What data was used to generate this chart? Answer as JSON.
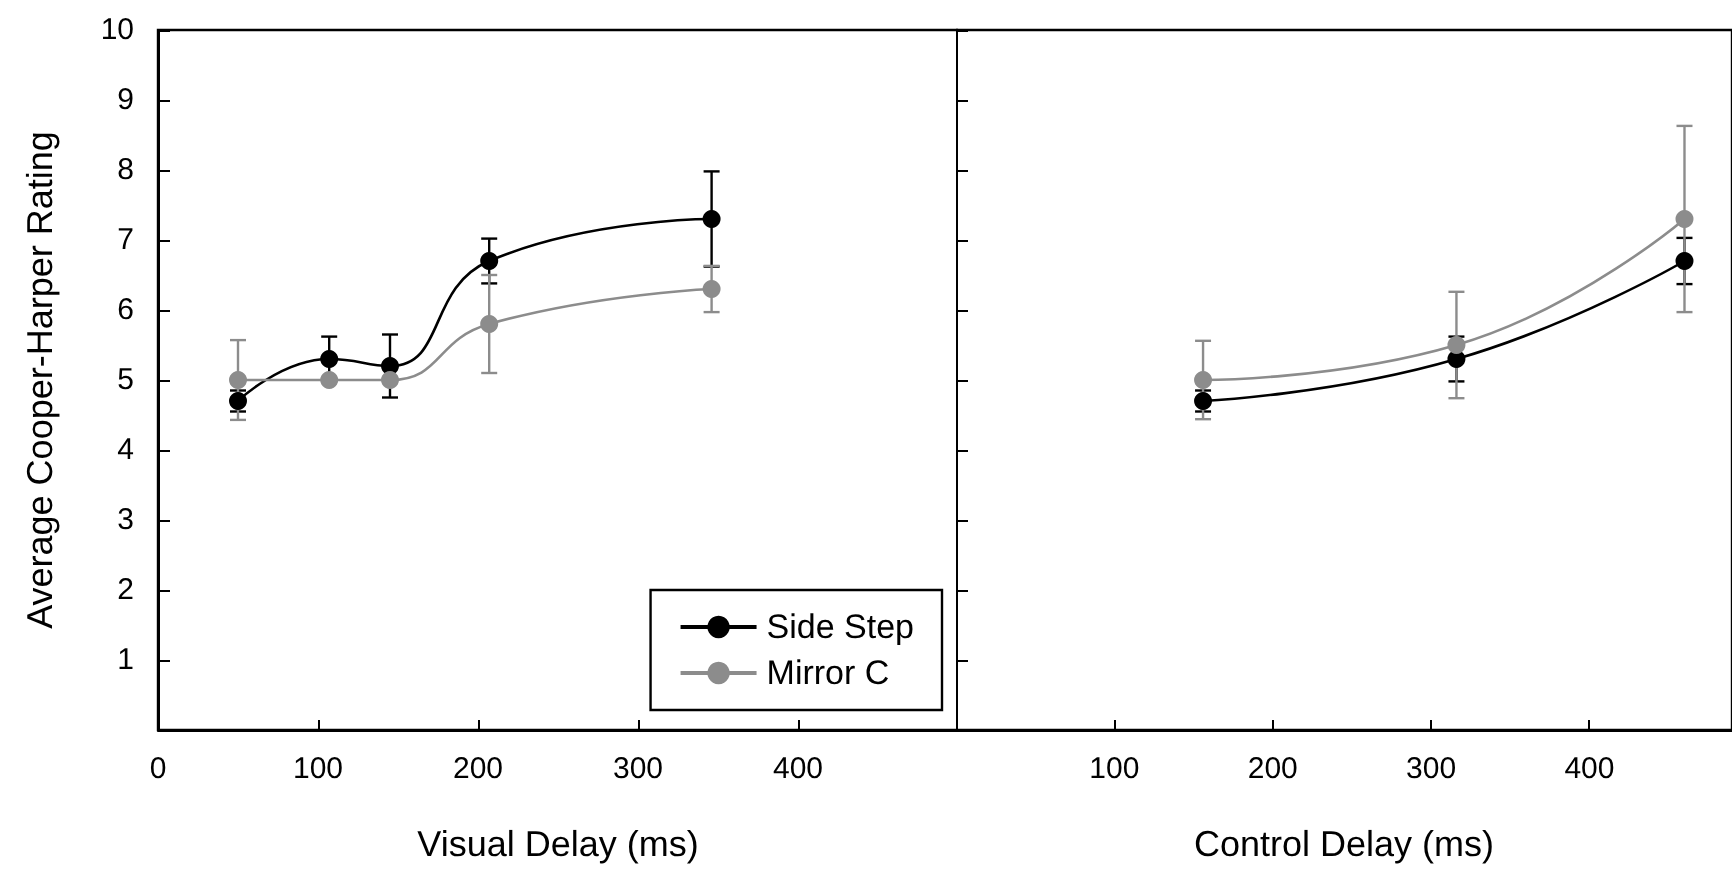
{
  "chart_data": [
    {
      "type": "line",
      "xlabel": "Visual Delay (ms)",
      "ylabel": "Average Cooper-Harper Rating",
      "xlim": [
        0,
        500
      ],
      "xticks": [
        0,
        100,
        200,
        300,
        400
      ],
      "ylim": [
        0,
        10
      ],
      "yticks": [
        1,
        2,
        3,
        4,
        5,
        6,
        7,
        8,
        9,
        10
      ],
      "marker": "circle",
      "line_style": "solid",
      "legend": "bottom right",
      "series": [
        {
          "name": "Side Step",
          "color": "#000000",
          "x": [
            50,
            107,
            145,
            207,
            346
          ],
          "values": [
            4.7,
            5.3,
            5.2,
            6.7,
            7.3
          ],
          "errors": [
            0.15,
            0.32,
            0.45,
            0.32,
            0.68
          ]
        },
        {
          "name": "Mirror C",
          "color": "#8c8c8c",
          "x": [
            50,
            107,
            145,
            207,
            346
          ],
          "values": [
            5.0,
            5.0,
            5.0,
            5.8,
            6.3
          ],
          "errors": [
            0.57,
            null,
            null,
            0.7,
            0.33
          ]
        }
      ]
    },
    {
      "type": "line",
      "xlabel": "Control Delay (ms)",
      "xlim": [
        0,
        490
      ],
      "xticks": [
        100,
        200,
        300,
        400
      ],
      "ylim": [
        0,
        10
      ],
      "yticks": [
        1,
        2,
        3,
        4,
        5,
        6,
        7,
        8,
        9,
        10
      ],
      "marker": "circle",
      "line_style": "solid",
      "tick_labels": "x",
      "series": [
        {
          "color": "#000000",
          "x": [
            156,
            316,
            460
          ],
          "values": [
            4.7,
            5.3,
            6.7
          ],
          "errors": [
            0.15,
            0.32,
            0.33
          ]
        },
        {
          "color": "#8c8c8c",
          "x": [
            156,
            316,
            460
          ],
          "values": [
            5.0,
            5.5,
            7.3
          ],
          "errors": [
            0.56,
            0.76,
            1.33
          ]
        }
      ]
    }
  ]
}
